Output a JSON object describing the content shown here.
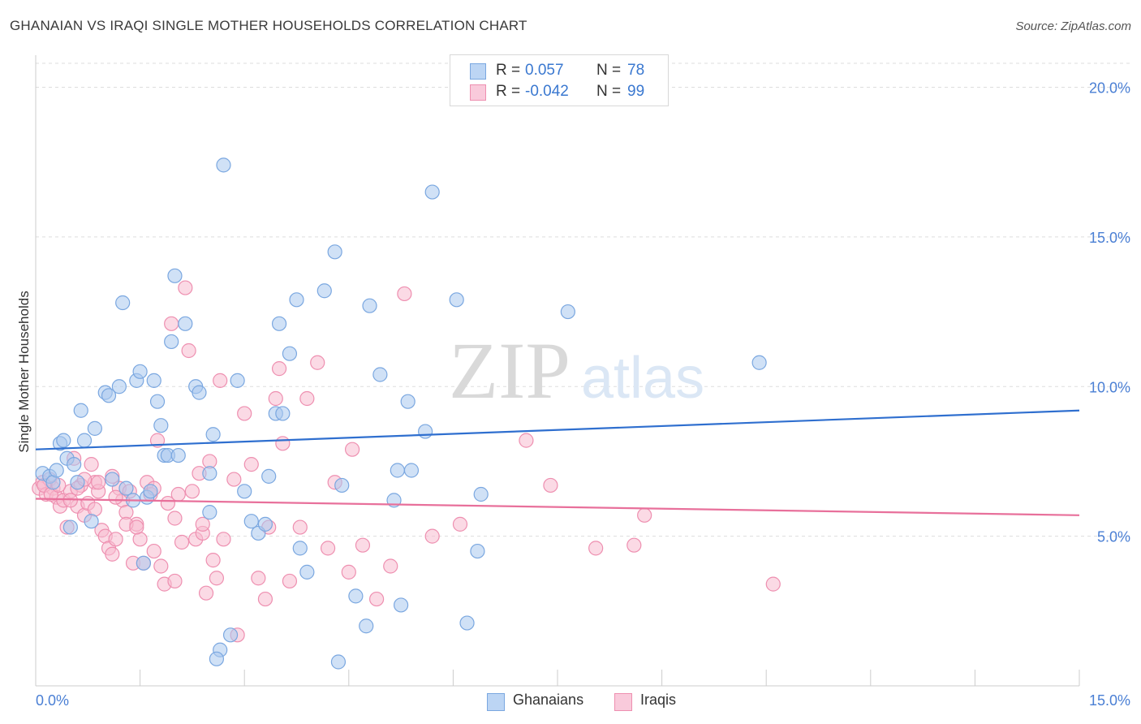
{
  "title": "GHANAIAN VS IRAQI SINGLE MOTHER HOUSEHOLDS CORRELATION CHART",
  "source": "Source: ZipAtlas.com",
  "watermark": {
    "zip": "ZIP",
    "atlas": "atlas"
  },
  "legend": {
    "rows": [
      {
        "label": "R =",
        "r": "0.057",
        "n_label": "N =",
        "n": "78"
      },
      {
        "label": "R =",
        "r": "-0.042",
        "n_label": "N =",
        "n": "99"
      }
    ]
  },
  "bottom_legend": [
    "Ghanaians",
    "Iraqis"
  ],
  "colors": {
    "blue_fill": "#a9c8ef",
    "blue_stroke": "#7aa7e0",
    "blue_line": "#2f6fcf",
    "pink_fill": "#f7bccf",
    "pink_stroke": "#ee8fb0",
    "pink_line": "#e8709b",
    "axis_text": "#4a7fd4",
    "grid": "#dddddd"
  },
  "chart_data": {
    "type": "scatter",
    "title": "GHANAIAN VS IRAQI SINGLE MOTHER HOUSEHOLDS CORRELATION CHART",
    "xlabel": "",
    "ylabel": "Single Mother Households",
    "xlim": [
      0,
      15
    ],
    "ylim": [
      0,
      20.8
    ],
    "x_tick_labels": [
      "0.0%",
      "15.0%"
    ],
    "y_ticks": [
      5,
      10,
      15,
      20
    ],
    "y_tick_labels": [
      "5.0%",
      "10.0%",
      "15.0%",
      "20.0%"
    ],
    "grid": true,
    "series": [
      {
        "name": "Ghanaians",
        "trend": [
          [
            0,
            7.9
          ],
          [
            15,
            9.2
          ]
        ],
        "points": [
          [
            0.1,
            7.1
          ],
          [
            0.2,
            7.0
          ],
          [
            0.25,
            6.8
          ],
          [
            0.3,
            7.2
          ],
          [
            0.35,
            8.1
          ],
          [
            0.4,
            8.2
          ],
          [
            0.45,
            7.6
          ],
          [
            0.55,
            7.4
          ],
          [
            0.6,
            6.8
          ],
          [
            0.65,
            9.2
          ],
          [
            0.7,
            8.2
          ],
          [
            0.8,
            5.5
          ],
          [
            0.85,
            8.6
          ],
          [
            1.0,
            9.8
          ],
          [
            1.05,
            9.7
          ],
          [
            1.1,
            6.9
          ],
          [
            1.2,
            10.0
          ],
          [
            1.25,
            12.8
          ],
          [
            1.3,
            6.6
          ],
          [
            1.4,
            6.2
          ],
          [
            1.45,
            10.2
          ],
          [
            1.5,
            10.5
          ],
          [
            1.6,
            6.3
          ],
          [
            1.65,
            6.5
          ],
          [
            1.7,
            10.2
          ],
          [
            1.75,
            9.5
          ],
          [
            1.8,
            8.7
          ],
          [
            1.85,
            7.7
          ],
          [
            1.9,
            7.7
          ],
          [
            1.95,
            11.5
          ],
          [
            2.0,
            13.7
          ],
          [
            2.05,
            7.7
          ],
          [
            2.15,
            12.1
          ],
          [
            2.3,
            10.0
          ],
          [
            2.35,
            9.8
          ],
          [
            2.5,
            7.1
          ],
          [
            2.55,
            8.4
          ],
          [
            2.7,
            17.4
          ],
          [
            2.8,
            1.7
          ],
          [
            2.65,
            1.2
          ],
          [
            2.9,
            10.2
          ],
          [
            3.0,
            6.5
          ],
          [
            3.1,
            5.5
          ],
          [
            3.2,
            5.1
          ],
          [
            3.3,
            5.4
          ],
          [
            3.35,
            7.0
          ],
          [
            3.45,
            9.1
          ],
          [
            3.5,
            12.1
          ],
          [
            3.55,
            9.1
          ],
          [
            3.65,
            11.1
          ],
          [
            3.75,
            12.9
          ],
          [
            3.8,
            4.6
          ],
          [
            4.15,
            13.2
          ],
          [
            4.3,
            14.5
          ],
          [
            4.4,
            6.7
          ],
          [
            4.6,
            3.0
          ],
          [
            4.75,
            2.0
          ],
          [
            4.8,
            12.7
          ],
          [
            4.95,
            10.4
          ],
          [
            5.15,
            6.2
          ],
          [
            5.2,
            7.2
          ],
          [
            5.25,
            2.7
          ],
          [
            5.35,
            9.5
          ],
          [
            5.4,
            7.2
          ],
          [
            5.6,
            8.5
          ],
          [
            5.7,
            16.5
          ],
          [
            6.05,
            12.9
          ],
          [
            6.2,
            2.1
          ],
          [
            6.35,
            4.5
          ],
          [
            6.4,
            6.4
          ],
          [
            7.65,
            12.5
          ],
          [
            10.4,
            10.8
          ],
          [
            2.5,
            5.8
          ],
          [
            2.6,
            0.9
          ],
          [
            0.5,
            5.3
          ],
          [
            4.35,
            0.8
          ],
          [
            1.55,
            4.1
          ],
          [
            3.9,
            3.8
          ]
        ]
      },
      {
        "name": "Iraqis",
        "trend": [
          [
            0,
            6.25
          ],
          [
            15,
            5.7
          ]
        ],
        "points": [
          [
            0.05,
            6.6
          ],
          [
            0.1,
            6.8
          ],
          [
            0.15,
            6.4
          ],
          [
            0.2,
            6.9
          ],
          [
            0.25,
            6.6
          ],
          [
            0.3,
            6.3
          ],
          [
            0.35,
            6.0
          ],
          [
            0.4,
            6.2
          ],
          [
            0.45,
            5.3
          ],
          [
            0.5,
            6.5
          ],
          [
            0.55,
            7.6
          ],
          [
            0.6,
            6.0
          ],
          [
            0.65,
            6.7
          ],
          [
            0.7,
            5.7
          ],
          [
            0.75,
            6.1
          ],
          [
            0.8,
            7.4
          ],
          [
            0.85,
            6.8
          ],
          [
            0.9,
            6.5
          ],
          [
            0.95,
            5.2
          ],
          [
            1.0,
            5.0
          ],
          [
            1.05,
            4.6
          ],
          [
            1.1,
            4.4
          ],
          [
            1.15,
            4.9
          ],
          [
            1.2,
            6.6
          ],
          [
            1.25,
            6.2
          ],
          [
            1.3,
            5.8
          ],
          [
            1.35,
            6.5
          ],
          [
            1.4,
            4.1
          ],
          [
            1.45,
            5.4
          ],
          [
            1.5,
            4.9
          ],
          [
            1.55,
            4.1
          ],
          [
            1.6,
            6.8
          ],
          [
            1.65,
            6.4
          ],
          [
            1.7,
            4.5
          ],
          [
            1.75,
            8.2
          ],
          [
            1.8,
            4.0
          ],
          [
            1.85,
            3.4
          ],
          [
            1.9,
            6.1
          ],
          [
            1.95,
            12.1
          ],
          [
            2.0,
            3.5
          ],
          [
            2.05,
            6.4
          ],
          [
            2.1,
            4.8
          ],
          [
            2.15,
            13.3
          ],
          [
            2.2,
            11.2
          ],
          [
            2.25,
            6.5
          ],
          [
            2.3,
            4.9
          ],
          [
            2.35,
            7.1
          ],
          [
            2.4,
            5.1
          ],
          [
            2.45,
            3.1
          ],
          [
            2.5,
            7.5
          ],
          [
            2.55,
            4.2
          ],
          [
            2.6,
            3.6
          ],
          [
            2.65,
            10.2
          ],
          [
            2.7,
            4.9
          ],
          [
            2.85,
            6.9
          ],
          [
            2.9,
            1.7
          ],
          [
            3.0,
            9.1
          ],
          [
            3.1,
            7.4
          ],
          [
            3.2,
            3.6
          ],
          [
            3.3,
            2.9
          ],
          [
            3.35,
            5.3
          ],
          [
            3.45,
            9.6
          ],
          [
            3.5,
            10.6
          ],
          [
            3.55,
            8.1
          ],
          [
            3.65,
            3.5
          ],
          [
            3.8,
            5.3
          ],
          [
            3.9,
            9.6
          ],
          [
            4.05,
            10.8
          ],
          [
            4.2,
            4.6
          ],
          [
            4.3,
            6.8
          ],
          [
            4.5,
            3.8
          ],
          [
            4.55,
            7.9
          ],
          [
            4.7,
            4.7
          ],
          [
            4.9,
            2.9
          ],
          [
            5.1,
            4.0
          ],
          [
            5.3,
            13.1
          ],
          [
            5.7,
            5.0
          ],
          [
            6.1,
            5.4
          ],
          [
            7.05,
            8.2
          ],
          [
            7.4,
            6.7
          ],
          [
            8.05,
            4.6
          ],
          [
            8.6,
            4.7
          ],
          [
            8.75,
            5.7
          ],
          [
            10.6,
            3.4
          ],
          [
            0.12,
            6.7
          ],
          [
            0.22,
            6.4
          ],
          [
            0.33,
            6.7
          ],
          [
            0.6,
            6.6
          ],
          [
            1.15,
            6.3
          ],
          [
            0.9,
            6.8
          ],
          [
            1.3,
            5.4
          ],
          [
            2.0,
            5.6
          ],
          [
            1.7,
            6.6
          ],
          [
            2.4,
            5.4
          ],
          [
            0.7,
            6.9
          ],
          [
            1.1,
            7.0
          ],
          [
            0.5,
            6.2
          ],
          [
            0.85,
            5.9
          ],
          [
            1.45,
            5.3
          ]
        ]
      }
    ]
  }
}
